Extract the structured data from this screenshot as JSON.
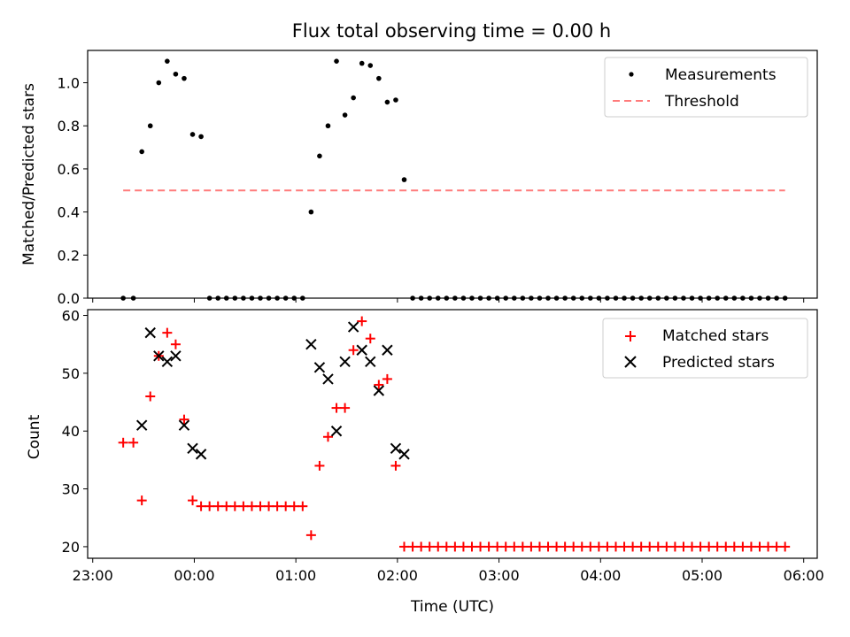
{
  "chart_data": [
    {
      "type": "scatter",
      "title": "Flux total observing time = 0.00 h",
      "xlabel": "",
      "ylabel": "Matched/Predicted stars",
      "xlim": [
        "22:57",
        "06:08"
      ],
      "ylim": [
        0,
        1.15
      ],
      "xticks": [],
      "yticks": [
        0.0,
        0.2,
        0.4,
        0.6,
        0.8,
        1.0
      ],
      "legend_position": "top-right",
      "series": [
        {
          "name": "Measurements",
          "marker": "dot",
          "color": "#000000",
          "points": [
            [
              "23:18",
              0.0
            ],
            [
              "23:24",
              0.0
            ],
            [
              "23:29",
              0.68
            ],
            [
              "23:34",
              0.8
            ],
            [
              "23:39",
              1.0
            ],
            [
              "23:44",
              1.1
            ],
            [
              "23:49",
              1.04
            ],
            [
              "23:54",
              1.02
            ],
            [
              "23:59",
              0.76
            ],
            [
              "00:04",
              0.75
            ],
            [
              "00:09",
              0.0
            ],
            [
              "00:14",
              0.0
            ],
            [
              "00:19",
              0.0
            ],
            [
              "00:24",
              0.0
            ],
            [
              "00:29",
              0.0
            ],
            [
              "00:34",
              0.0
            ],
            [
              "00:39",
              0.0
            ],
            [
              "00:44",
              0.0
            ],
            [
              "00:49",
              0.0
            ],
            [
              "00:54",
              0.0
            ],
            [
              "00:59",
              0.0
            ],
            [
              "01:04",
              0.0
            ],
            [
              "01:09",
              0.4
            ],
            [
              "01:14",
              0.66
            ],
            [
              "01:19",
              0.8
            ],
            [
              "01:24",
              1.1
            ],
            [
              "01:29",
              0.85
            ],
            [
              "01:34",
              0.93
            ],
            [
              "01:39",
              1.09
            ],
            [
              "01:44",
              1.08
            ],
            [
              "01:49",
              1.02
            ],
            [
              "01:54",
              0.91
            ],
            [
              "01:59",
              0.92
            ],
            [
              "02:04",
              0.55
            ],
            [
              "02:09",
              0.0
            ],
            [
              "02:14",
              0.0
            ],
            [
              "02:19",
              0.0
            ],
            [
              "02:24",
              0.0
            ],
            [
              "02:29",
              0.0
            ],
            [
              "02:34",
              0.0
            ],
            [
              "02:39",
              0.0
            ],
            [
              "02:44",
              0.0
            ],
            [
              "02:49",
              0.0
            ],
            [
              "02:54",
              0.0
            ],
            [
              "02:59",
              0.0
            ],
            [
              "03:04",
              0.0
            ],
            [
              "03:09",
              0.0
            ],
            [
              "03:14",
              0.0
            ],
            [
              "03:19",
              0.0
            ],
            [
              "03:24",
              0.0
            ],
            [
              "03:29",
              0.0
            ],
            [
              "03:34",
              0.0
            ],
            [
              "03:39",
              0.0
            ],
            [
              "03:44",
              0.0
            ],
            [
              "03:49",
              0.0
            ],
            [
              "03:54",
              0.0
            ],
            [
              "03:59",
              0.0
            ],
            [
              "04:04",
              0.0
            ],
            [
              "04:09",
              0.0
            ],
            [
              "04:14",
              0.0
            ],
            [
              "04:19",
              0.0
            ],
            [
              "04:24",
              0.0
            ],
            [
              "04:29",
              0.0
            ],
            [
              "04:34",
              0.0
            ],
            [
              "04:39",
              0.0
            ],
            [
              "04:44",
              0.0
            ],
            [
              "04:49",
              0.0
            ],
            [
              "04:54",
              0.0
            ],
            [
              "04:59",
              0.0
            ],
            [
              "05:04",
              0.0
            ],
            [
              "05:09",
              0.0
            ],
            [
              "05:14",
              0.0
            ],
            [
              "05:19",
              0.0
            ],
            [
              "05:24",
              0.0
            ],
            [
              "05:29",
              0.0
            ],
            [
              "05:34",
              0.0
            ],
            [
              "05:39",
              0.0
            ],
            [
              "05:44",
              0.0
            ],
            [
              "05:49",
              0.0
            ]
          ]
        },
        {
          "name": "Threshold",
          "style": "dashed-line",
          "color": "#ff7b7b",
          "points": [
            [
              "23:18",
              0.5
            ],
            [
              "05:49",
              0.5
            ]
          ]
        }
      ]
    },
    {
      "type": "scatter",
      "title": "",
      "xlabel": "Time (UTC)",
      "ylabel": "Count",
      "xlim": [
        "22:57",
        "06:08"
      ],
      "ylim": [
        18,
        61
      ],
      "xticks": [
        "23:00",
        "00:00",
        "01:00",
        "02:00",
        "03:00",
        "04:00",
        "05:00",
        "06:00"
      ],
      "yticks": [
        20,
        30,
        40,
        50,
        60
      ],
      "legend_position": "top-right",
      "series": [
        {
          "name": "Matched stars",
          "marker": "plus",
          "color": "#ff0000",
          "points": [
            [
              "23:18",
              38
            ],
            [
              "23:24",
              38
            ],
            [
              "23:29",
              28
            ],
            [
              "23:34",
              46
            ],
            [
              "23:39",
              53
            ],
            [
              "23:44",
              57
            ],
            [
              "23:49",
              55
            ],
            [
              "23:54",
              42
            ],
            [
              "23:59",
              28
            ],
            [
              "00:04",
              27
            ],
            [
              "00:09",
              27
            ],
            [
              "00:14",
              27
            ],
            [
              "00:19",
              27
            ],
            [
              "00:24",
              27
            ],
            [
              "00:29",
              27
            ],
            [
              "00:34",
              27
            ],
            [
              "00:39",
              27
            ],
            [
              "00:44",
              27
            ],
            [
              "00:49",
              27
            ],
            [
              "00:54",
              27
            ],
            [
              "00:59",
              27
            ],
            [
              "01:04",
              27
            ],
            [
              "01:09",
              22
            ],
            [
              "01:14",
              34
            ],
            [
              "01:19",
              39
            ],
            [
              "01:24",
              44
            ],
            [
              "01:29",
              44
            ],
            [
              "01:34",
              54
            ],
            [
              "01:39",
              59
            ],
            [
              "01:44",
              56
            ],
            [
              "01:49",
              48
            ],
            [
              "01:54",
              49
            ],
            [
              "01:59",
              34
            ],
            [
              "02:04",
              20
            ],
            [
              "02:09",
              20
            ],
            [
              "02:14",
              20
            ],
            [
              "02:19",
              20
            ],
            [
              "02:24",
              20
            ],
            [
              "02:29",
              20
            ],
            [
              "02:34",
              20
            ],
            [
              "02:39",
              20
            ],
            [
              "02:44",
              20
            ],
            [
              "02:49",
              20
            ],
            [
              "02:54",
              20
            ],
            [
              "02:59",
              20
            ],
            [
              "03:04",
              20
            ],
            [
              "03:09",
              20
            ],
            [
              "03:14",
              20
            ],
            [
              "03:19",
              20
            ],
            [
              "03:24",
              20
            ],
            [
              "03:29",
              20
            ],
            [
              "03:34",
              20
            ],
            [
              "03:39",
              20
            ],
            [
              "03:44",
              20
            ],
            [
              "03:49",
              20
            ],
            [
              "03:54",
              20
            ],
            [
              "03:59",
              20
            ],
            [
              "04:04",
              20
            ],
            [
              "04:09",
              20
            ],
            [
              "04:14",
              20
            ],
            [
              "04:19",
              20
            ],
            [
              "04:24",
              20
            ],
            [
              "04:29",
              20
            ],
            [
              "04:34",
              20
            ],
            [
              "04:39",
              20
            ],
            [
              "04:44",
              20
            ],
            [
              "04:49",
              20
            ],
            [
              "04:54",
              20
            ],
            [
              "04:59",
              20
            ],
            [
              "05:04",
              20
            ],
            [
              "05:09",
              20
            ],
            [
              "05:14",
              20
            ],
            [
              "05:19",
              20
            ],
            [
              "05:24",
              20
            ],
            [
              "05:29",
              20
            ],
            [
              "05:34",
              20
            ],
            [
              "05:39",
              20
            ],
            [
              "05:44",
              20
            ],
            [
              "05:49",
              20
            ]
          ]
        },
        {
          "name": "Predicted stars",
          "marker": "x",
          "color": "#000000",
          "points": [
            [
              "23:29",
              41
            ],
            [
              "23:34",
              57
            ],
            [
              "23:39",
              53
            ],
            [
              "23:44",
              52
            ],
            [
              "23:49",
              53
            ],
            [
              "23:54",
              41
            ],
            [
              "23:59",
              37
            ],
            [
              "00:04",
              36
            ],
            [
              "01:09",
              55
            ],
            [
              "01:14",
              51
            ],
            [
              "01:19",
              49
            ],
            [
              "01:24",
              40
            ],
            [
              "01:29",
              52
            ],
            [
              "01:34",
              58
            ],
            [
              "01:39",
              54
            ],
            [
              "01:44",
              52
            ],
            [
              "01:49",
              47
            ],
            [
              "01:54",
              54
            ],
            [
              "01:59",
              37
            ],
            [
              "02:04",
              36
            ]
          ]
        }
      ]
    }
  ]
}
